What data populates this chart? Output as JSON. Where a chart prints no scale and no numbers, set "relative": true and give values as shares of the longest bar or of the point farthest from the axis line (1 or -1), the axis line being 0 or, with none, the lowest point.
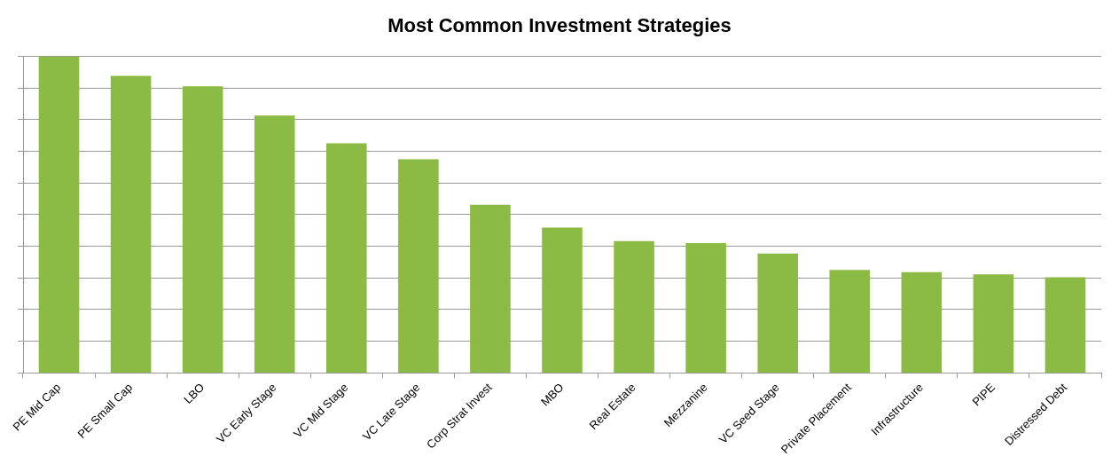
{
  "chart_data": {
    "type": "bar",
    "title": "Most Common Investment Strategies",
    "categories": [
      "PE Mid Cap",
      "PE Small Cap",
      "LBO",
      "VC Early Stage",
      "VC Mid Stage",
      "VC Late Stage",
      "Corp Strat Invest",
      "MBO",
      "Real Estate",
      "Mezzanine",
      "VC Seed Stage",
      "Private Placement",
      "Infrastructure",
      "PIPE",
      "Distressed Debt"
    ],
    "values": [
      1,
      0.938,
      0.905,
      0.813,
      0.725,
      0.675,
      0.531,
      0.459,
      0.416,
      0.41,
      0.377,
      0.325,
      0.318,
      0.311,
      0.302
    ],
    "color": "#8cbb45",
    "relative": true,
    "grid": "y",
    "legend": false
  }
}
